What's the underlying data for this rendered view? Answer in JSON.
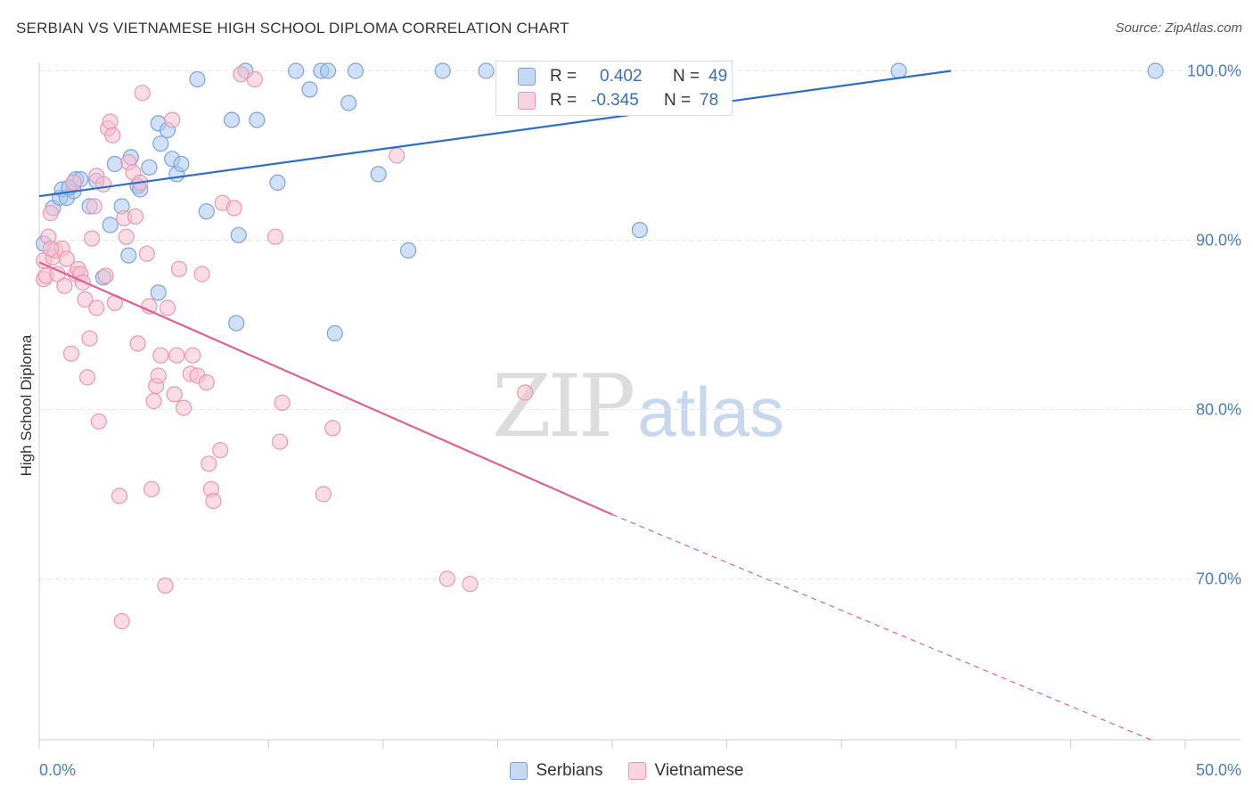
{
  "title": "SERBIAN VS VIETNAMESE HIGH SCHOOL DIPLOMA CORRELATION CHART",
  "source": "Source: ZipAtlas.com",
  "watermark": {
    "zip": "ZIP",
    "atlas": "atlas"
  },
  "colors": {
    "serbians_fill": "#aac8f0",
    "serbians_stroke": "#7aa3dd",
    "serbians_line": "#2f6dc8",
    "vietnamese_fill": "#f6bfd0",
    "vietnamese_stroke": "#e898b2",
    "vietnamese_line": "#e0608e",
    "grid": "#e6e6e6",
    "axis": "#cccccc",
    "tick_label": "#4a7cc0"
  },
  "legend_top": {
    "rows": [
      {
        "series": "Serbians",
        "r_label": "R =",
        "r_value": "0.402",
        "n_label": "N =",
        "n_value": "49"
      },
      {
        "series": "Vietnamese",
        "r_label": "R =",
        "r_value": "-0.345",
        "n_label": "N =",
        "n_value": "78"
      }
    ]
  },
  "chart_data": {
    "type": "scatter",
    "title": "SERBIAN VS VIETNAMESE HIGH SCHOOL DIPLOMA CORRELATION CHART",
    "xlabel": "",
    "ylabel": "High School Diploma",
    "xlim": [
      0,
      50
    ],
    "ylim": [
      60.5,
      100.5
    ],
    "x_tick_labels": [
      "0.0%",
      "50.0%"
    ],
    "y_ticks": [
      70,
      80,
      90,
      100
    ],
    "y_tick_labels": [
      "70.0%",
      "80.0%",
      "90.0%",
      "100.0%"
    ],
    "grid": "horizontal dashed",
    "legend_position": "bottom-center",
    "series": [
      {
        "name": "Serbians",
        "points": [
          [
            0.6,
            91.9
          ],
          [
            0.9,
            92.5
          ],
          [
            1.0,
            93.0
          ],
          [
            1.2,
            92.5
          ],
          [
            1.5,
            92.9
          ],
          [
            1.6,
            93.6
          ],
          [
            1.8,
            93.6
          ],
          [
            2.2,
            92.0
          ],
          [
            2.5,
            93.5
          ],
          [
            2.8,
            87.8
          ],
          [
            3.1,
            90.9
          ],
          [
            3.3,
            94.5
          ],
          [
            3.6,
            92.0
          ],
          [
            3.9,
            89.1
          ],
          [
            4.0,
            94.9
          ],
          [
            4.3,
            93.2
          ],
          [
            4.4,
            93.0
          ],
          [
            4.8,
            94.3
          ],
          [
            5.2,
            96.9
          ],
          [
            5.2,
            86.9
          ],
          [
            5.3,
            95.7
          ],
          [
            5.6,
            96.5
          ],
          [
            5.8,
            94.8
          ],
          [
            6.0,
            93.9
          ],
          [
            6.2,
            94.5
          ],
          [
            6.9,
            99.5
          ],
          [
            7.3,
            91.7
          ],
          [
            8.4,
            97.1
          ],
          [
            8.6,
            85.1
          ],
          [
            8.7,
            90.3
          ],
          [
            9.0,
            100.0
          ],
          [
            9.5,
            97.1
          ],
          [
            10.4,
            93.4
          ],
          [
            11.2,
            100.0
          ],
          [
            11.8,
            98.9
          ],
          [
            12.3,
            100.0
          ],
          [
            12.6,
            100.0
          ],
          [
            12.9,
            84.5
          ],
          [
            13.5,
            98.1
          ],
          [
            13.8,
            100.0
          ],
          [
            14.8,
            93.9
          ],
          [
            16.1,
            89.4
          ],
          [
            17.6,
            100.0
          ],
          [
            19.5,
            100.0
          ],
          [
            26.2,
            90.6
          ],
          [
            37.5,
            100.0
          ],
          [
            48.7,
            100.0
          ],
          [
            0.2,
            89.8
          ],
          [
            1.3,
            93.1
          ]
        ],
        "trend": {
          "x": [
            0,
            50
          ],
          "y": [
            92.6,
            101.9
          ]
        }
      },
      {
        "name": "Vietnamese",
        "points": [
          [
            0.2,
            88.8
          ],
          [
            0.2,
            87.7
          ],
          [
            0.3,
            87.9
          ],
          [
            0.4,
            90.2
          ],
          [
            0.5,
            91.6
          ],
          [
            0.6,
            89.0
          ],
          [
            0.7,
            89.4
          ],
          [
            0.8,
            88.0
          ],
          [
            1.0,
            89.5
          ],
          [
            1.1,
            87.3
          ],
          [
            1.2,
            88.9
          ],
          [
            1.4,
            83.3
          ],
          [
            1.5,
            93.4
          ],
          [
            1.6,
            88.0
          ],
          [
            1.7,
            88.3
          ],
          [
            1.8,
            88.0
          ],
          [
            1.9,
            87.5
          ],
          [
            2.0,
            86.5
          ],
          [
            2.1,
            81.9
          ],
          [
            2.2,
            84.2
          ],
          [
            2.3,
            90.1
          ],
          [
            2.4,
            92.0
          ],
          [
            2.5,
            93.8
          ],
          [
            2.5,
            86.0
          ],
          [
            2.6,
            79.3
          ],
          [
            2.8,
            93.3
          ],
          [
            3.0,
            96.6
          ],
          [
            3.1,
            97.0
          ],
          [
            3.2,
            96.2
          ],
          [
            3.3,
            86.3
          ],
          [
            3.5,
            74.9
          ],
          [
            3.6,
            67.5
          ],
          [
            3.7,
            91.3
          ],
          [
            3.8,
            90.2
          ],
          [
            3.9,
            94.6
          ],
          [
            4.1,
            94.0
          ],
          [
            4.2,
            91.4
          ],
          [
            4.3,
            83.9
          ],
          [
            4.4,
            93.4
          ],
          [
            4.5,
            98.7
          ],
          [
            4.7,
            89.2
          ],
          [
            4.8,
            86.1
          ],
          [
            4.9,
            75.3
          ],
          [
            5.0,
            80.5
          ],
          [
            5.1,
            81.4
          ],
          [
            5.2,
            82.0
          ],
          [
            5.3,
            83.2
          ],
          [
            5.5,
            69.6
          ],
          [
            5.6,
            86.0
          ],
          [
            5.8,
            97.1
          ],
          [
            5.9,
            80.9
          ],
          [
            6.0,
            83.2
          ],
          [
            6.1,
            88.3
          ],
          [
            6.3,
            80.1
          ],
          [
            6.6,
            82.1
          ],
          [
            6.7,
            83.2
          ],
          [
            6.9,
            82.0
          ],
          [
            7.1,
            88.0
          ],
          [
            7.3,
            81.6
          ],
          [
            7.4,
            76.8
          ],
          [
            7.5,
            75.3
          ],
          [
            7.6,
            74.6
          ],
          [
            7.9,
            77.6
          ],
          [
            8.0,
            92.2
          ],
          [
            8.5,
            91.9
          ],
          [
            8.8,
            99.8
          ],
          [
            9.4,
            99.5
          ],
          [
            10.3,
            90.2
          ],
          [
            10.5,
            78.1
          ],
          [
            10.6,
            80.4
          ],
          [
            12.4,
            75.0
          ],
          [
            12.8,
            78.9
          ],
          [
            15.6,
            95.0
          ],
          [
            17.8,
            70.0
          ],
          [
            18.8,
            69.7
          ],
          [
            21.2,
            81.0
          ],
          [
            0.5,
            89.5
          ],
          [
            2.9,
            87.9
          ]
        ],
        "trend": {
          "x": [
            0,
            25
          ],
          "y": [
            88.7,
            73.8
          ]
        },
        "trend_dashed": {
          "x": [
            25,
            48.5
          ],
          "y": [
            73.8,
            60.5
          ]
        }
      }
    ]
  }
}
